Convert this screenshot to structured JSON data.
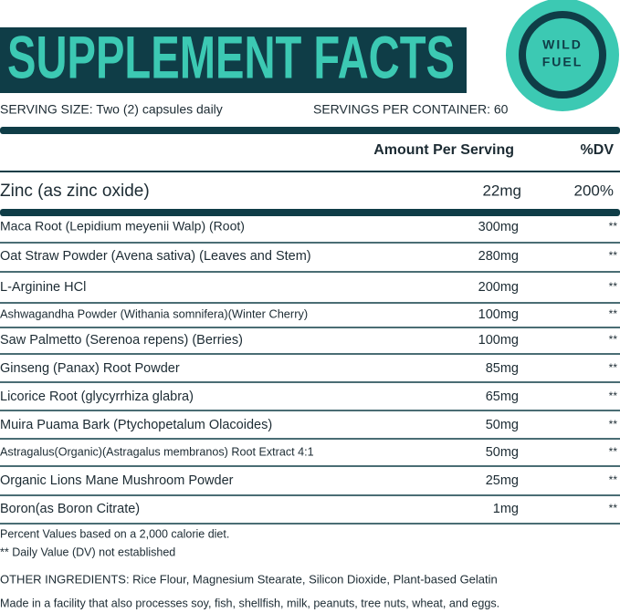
{
  "header": {
    "title": "SUPPLEMENT FACTS",
    "logo": [
      "WILD",
      "FUEL"
    ]
  },
  "serving": {
    "size": "SERVING SIZE: Two (2) capsules daily",
    "per_container": "SERVINGS PER CONTAINER: 60"
  },
  "table": {
    "columns": [
      "Amount Per Serving",
      "%DV"
    ],
    "featured": [
      "Zinc (as zinc oxide)",
      "22mg",
      "200%"
    ],
    "rows": [
      [
        "Maca Root (Lepidium meyenii Walp) (Root)",
        "300mg",
        "**"
      ],
      [
        "Oat Straw Powder (Avena sativa) (Leaves and Stem)",
        "280mg",
        "**"
      ],
      [
        "L-Arginine HCl",
        "200mg",
        "**"
      ],
      [
        "Ashwagandha Powder (Withania somnifera)(Winter Cherry)",
        "100mg",
        "**"
      ],
      [
        "Saw Palmetto (Serenoa repens) (Berries)",
        "100mg",
        "**"
      ],
      [
        "Ginseng (Panax) Root Powder",
        "85mg",
        "**"
      ],
      [
        "Licorice Root (glycyrrhiza glabra)",
        "65mg",
        "**"
      ],
      [
        "Muira Puama Bark (Ptychopetalum Olacoides)",
        "50mg",
        "**"
      ],
      [
        "Astragalus(Organic)(Astragalus membranos) Root Extract 4:1",
        "50mg",
        "**"
      ],
      [
        " Organic Lions Mane Mushroom Powder",
        "25mg",
        "**"
      ],
      [
        "Boron(as Boron Citrate)",
        "1mg",
        "**"
      ]
    ]
  },
  "footnotes": [
    "Percent Values based on a 2,000 calorie diet.",
    "** Daily Value (DV) not established"
  ],
  "other_ingredients": "OTHER INGREDIENTS: Rice Flour, Magnesium Stearate, Silicon Dioxide, Plant-based Gelatin",
  "facility": "Made in a facility that also processes soy, fish, shellfish, milk, peanuts, tree nuts, wheat, and eggs."
}
